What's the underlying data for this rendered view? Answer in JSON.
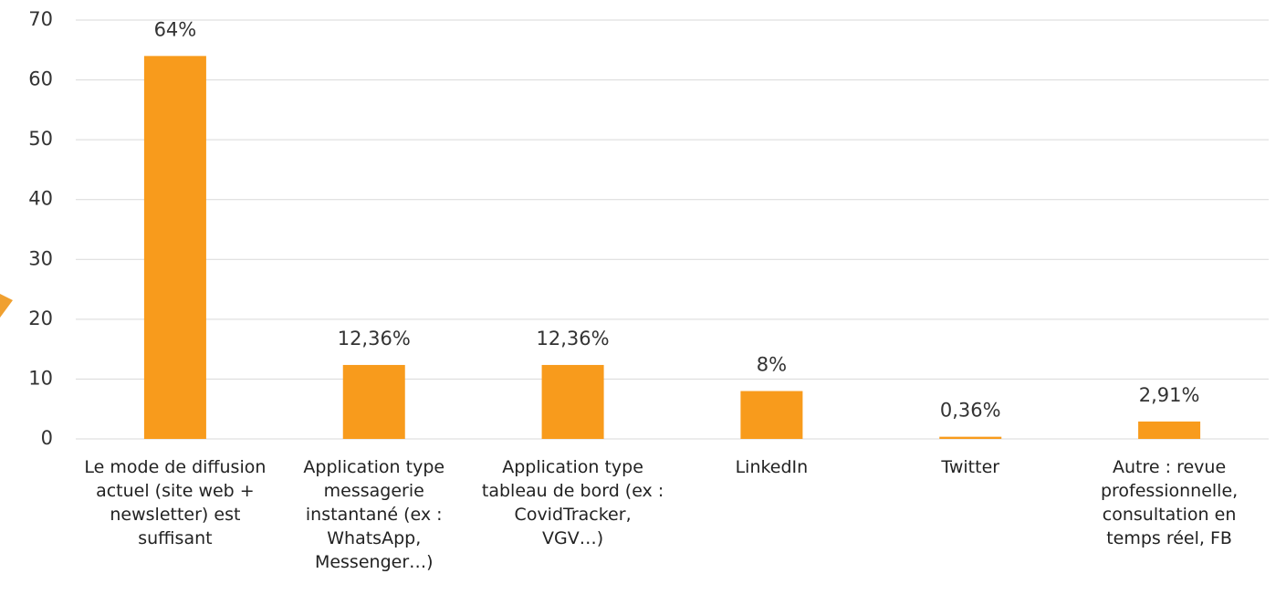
{
  "chart_data": {
    "type": "bar",
    "categories": [
      "Le mode de diffusion actuel (site web + newsletter) est suffisant",
      "Application type messagerie instantané (ex : WhatsApp, Messenger…)",
      "Application type tableau de bord (ex : CovidTracker, VGV…)",
      "LinkedIn",
      "Twitter",
      "Autre : revue professionnelle, consultation en temps réel, FB"
    ],
    "values": [
      64,
      12.36,
      12.36,
      8,
      0.36,
      2.91
    ],
    "value_labels": [
      "64%",
      "12,36%",
      "12,36%",
      "8%",
      "0,36%",
      "2,91%"
    ],
    "color": "#f89b1c",
    "ylim": [
      0,
      70
    ],
    "yticks": [
      0,
      10,
      20,
      30,
      40,
      50,
      60,
      70
    ],
    "grid": true
  }
}
